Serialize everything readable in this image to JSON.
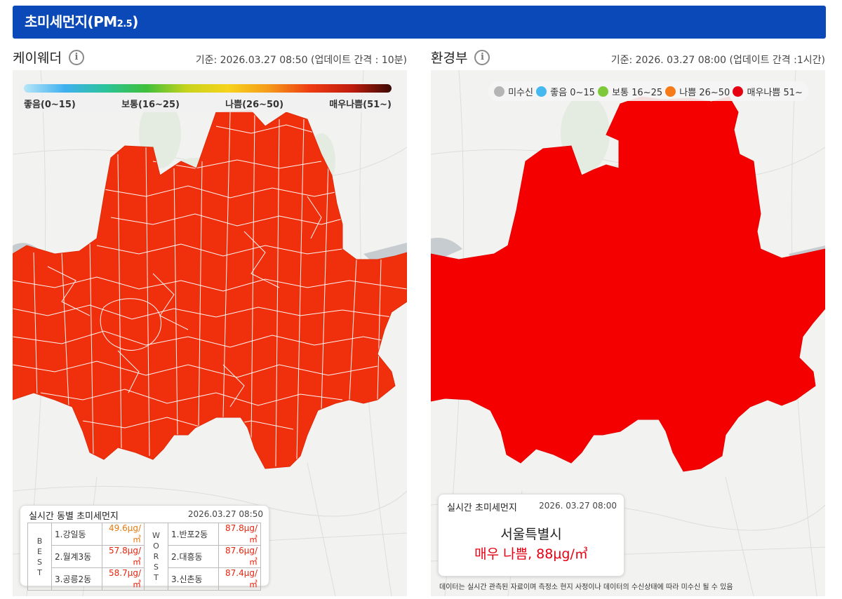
{
  "header": {
    "title_main": "초미세먼지(PM",
    "title_sub": "2.5",
    "title_close": ")"
  },
  "left": {
    "title": "케이웨더",
    "info_icon": "info-icon",
    "timestamp": "기준: 2026.03.27 08:50 (업데이트 간격 : 10분)",
    "scale_labels": [
      "좋음(0~15)",
      "보통(16~25)",
      "나쁨(26~50)",
      "매우나쁨(51~)"
    ],
    "box": {
      "title": "실시간 동별 초미세먼지",
      "time": "2026.03.27 08:50",
      "best_label": "BEST",
      "worst_label": "WORST",
      "best": [
        {
          "name": "1.강일동",
          "value": "49.6μg/㎥"
        },
        {
          "name": "2.월계3동",
          "value": "57.8μg/㎥"
        },
        {
          "name": "3.공릉2동",
          "value": "58.7μg/㎥"
        }
      ],
      "worst": [
        {
          "name": "1.반포2동",
          "value": "87.8μg/㎥"
        },
        {
          "name": "2.대흥동",
          "value": "87.6μg/㎥"
        },
        {
          "name": "3.신촌동",
          "value": "87.4μg/㎥"
        }
      ]
    },
    "colors": {
      "fill": "#f0300c",
      "best_first": "#e8780c",
      "value_red": "#e8240c"
    }
  },
  "right": {
    "title": "환경부",
    "info_icon": "info-icon",
    "timestamp": "기준: 2026. 03.27 08:00 (업데이트 간격 :1시간)",
    "legend": [
      {
        "label": "미수신",
        "color": "#b5b5b5"
      },
      {
        "label": "좋음 0~15",
        "color": "#45b8f0"
      },
      {
        "label": "보통 16~25",
        "color": "#7ec93a"
      },
      {
        "label": "나쁨 26~50",
        "color": "#f77a18"
      },
      {
        "label": "매우나쁨 51~",
        "color": "#e60012"
      }
    ],
    "box": {
      "title": "실시간 초미세먼지",
      "time": "2026. 03.27 08:00",
      "city": "서울특별시",
      "status": "매우 나쁨, 88μg/㎥"
    },
    "note": "데이터는 실시간 관측된 자료이며 측정소 현지 사정이나 데이터의 수신상태에 따라 미수신 될 수 있음",
    "colors": {
      "fill": "#f50000"
    }
  }
}
